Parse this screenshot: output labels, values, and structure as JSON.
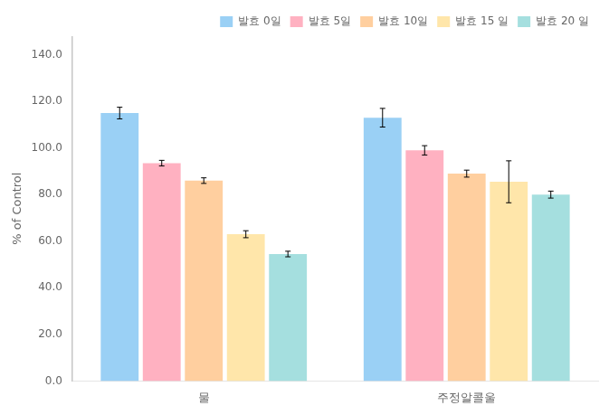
{
  "chart_data": {
    "type": "bar",
    "categories": [
      "물",
      "주정알콜울"
    ],
    "series": [
      {
        "name": "발효 0일",
        "values": [
          115.0,
          113.0
        ],
        "errors": [
          2.5,
          4.0
        ]
      },
      {
        "name": "발효 5일",
        "values": [
          93.5,
          99.0
        ],
        "errors": [
          1.2,
          2.0
        ]
      },
      {
        "name": "발효 10일",
        "values": [
          86.0,
          89.0
        ],
        "errors": [
          1.2,
          1.5
        ]
      },
      {
        "name": "발효 15 일",
        "values": [
          63.0,
          85.5
        ],
        "errors": [
          1.5,
          9.0
        ]
      },
      {
        "name": "발효 20 일",
        "values": [
          54.5,
          80.0
        ],
        "errors": [
          1.2,
          1.5
        ]
      }
    ],
    "ylabel": "% of Control",
    "ylim": [
      0,
      148
    ],
    "yticks": [
      {
        "value": 0,
        "label": "0.0"
      },
      {
        "value": 20,
        "label": "20.0"
      },
      {
        "value": 40,
        "label": "40.0"
      },
      {
        "value": 60,
        "label": "60.0"
      },
      {
        "value": 80,
        "label": "80.0"
      },
      {
        "value": 100,
        "label": "100.0"
      },
      {
        "value": 120,
        "label": "120.0"
      },
      {
        "value": 140,
        "label": "140.0"
      }
    ],
    "grid": false,
    "legend": "upper right"
  }
}
